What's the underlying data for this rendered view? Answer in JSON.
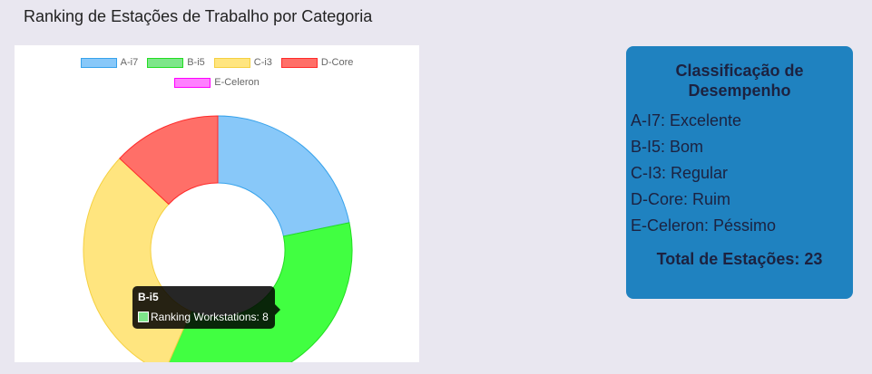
{
  "page": {
    "title": "Ranking de Estações de Trabalho por Categoria"
  },
  "chart_data": {
    "type": "doughnut",
    "categories": [
      "A-i7",
      "B-i5",
      "C-i3",
      "D-Core",
      "E-Celeron"
    ],
    "series": [
      {
        "name": "Ranking Workstations",
        "values": [
          5,
          8,
          7,
          3,
          0
        ]
      }
    ],
    "colors": {
      "fill": [
        "#88c8f9",
        "#41ff41",
        "#ffe57f",
        "#ff6f68",
        "#ff80ff"
      ],
      "border": [
        "#36a2eb",
        "#22dd22",
        "#f5d040",
        "#ff2a2a",
        "#ff00ff"
      ]
    },
    "legend_placement": "top"
  },
  "tooltip": {
    "title": "B-i5",
    "label": "Ranking Workstations: 8"
  },
  "info": {
    "title": "Classificação de Desempenho",
    "items": [
      "A-I7: Excelente",
      "B-I5: Bom",
      "C-I3: Regular",
      "D-Core: Ruim",
      "E-Celeron: Péssimo"
    ],
    "total": "Total de Estações: 23"
  }
}
